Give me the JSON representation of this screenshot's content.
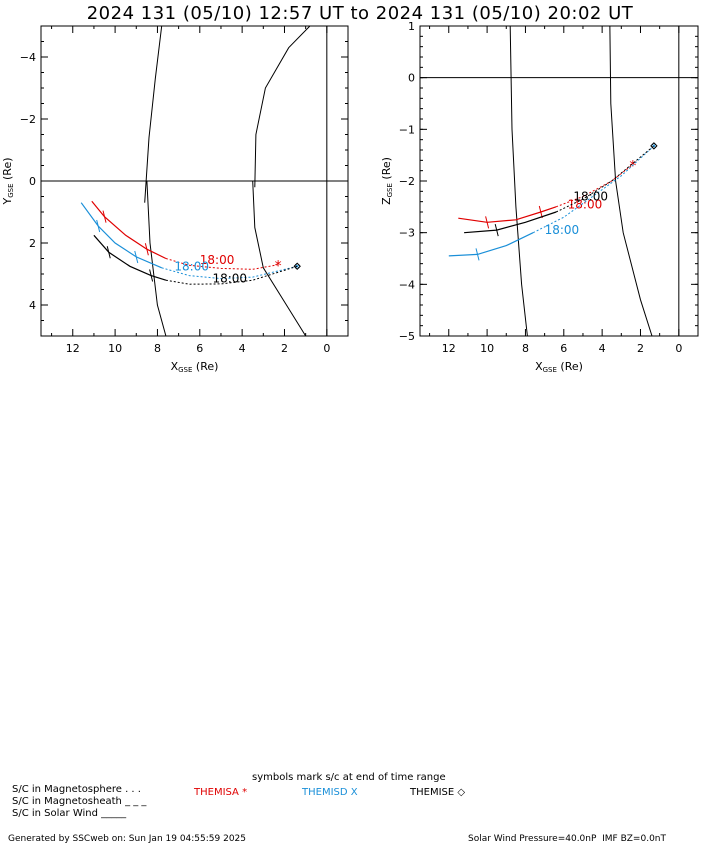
{
  "title": "2024 131 (05/10) 12:57 UT to 2024 131 (05/10) 20:02 UT",
  "colors": {
    "themisa": "#e00000",
    "themisd": "#1a8fd8",
    "themise": "#000000",
    "axes": "#000000"
  },
  "chart_data": [
    {
      "type": "line",
      "panel": "XY",
      "xlabel": "X",
      "xlabel_sub": "GSE",
      "xlabel_unit": " (Re)",
      "ylabel": "Y",
      "ylabel_sub": "GSE",
      "ylabel_unit": " (Re)",
      "xlim": [
        13.5,
        -1
      ],
      "ylim": [
        -5,
        5
      ],
      "y_inverted": true,
      "x_ticks": [
        12,
        10,
        8,
        6,
        4,
        2,
        0
      ],
      "y_ticks": [
        -4,
        -2,
        0,
        2,
        4
      ],
      "boundaries": [
        {
          "name": "",
          "points": [
            [
              8.6,
              0.7
            ],
            [
              8.4,
              -1.4
            ],
            [
              8.1,
              -3.3
            ],
            [
              7.8,
              -5.0
            ]
          ]
        },
        {
          "name": "",
          "points": [
            [
              8.5,
              0.0
            ],
            [
              8.35,
              2.0
            ],
            [
              8.0,
              4.0
            ],
            [
              7.6,
              5.0
            ]
          ]
        },
        {
          "name": "",
          "points": [
            [
              3.4,
              0.2
            ],
            [
              3.35,
              -1.5
            ],
            [
              2.9,
              -3.0
            ],
            [
              1.8,
              -4.3
            ],
            [
              0.8,
              -5.0
            ]
          ]
        },
        {
          "name": "",
          "points": [
            [
              3.5,
              0.0
            ],
            [
              3.4,
              1.5
            ],
            [
              3.0,
              2.8
            ],
            [
              2.0,
              3.9
            ],
            [
              1.0,
              5.0
            ]
          ]
        }
      ],
      "series": [
        {
          "name": "THEMISA",
          "color": "#e00000",
          "solid": [
            [
              11.1,
              0.65
            ],
            [
              10.5,
              1.15
            ],
            [
              9.5,
              1.75
            ],
            [
              8.5,
              2.2
            ],
            [
              7.6,
              2.5
            ]
          ],
          "dashed": [
            [
              7.6,
              2.5
            ],
            [
              6.5,
              2.72
            ],
            [
              5.0,
              2.82
            ],
            [
              3.5,
              2.85
            ],
            [
              2.3,
              2.7
            ]
          ],
          "end_symbol": "asterisk",
          "end": [
            2.3,
            2.7
          ],
          "tick_label": "18:00",
          "tick_label_at": [
            6.0,
            2.55
          ]
        },
        {
          "name": "THEMISD",
          "color": "#1a8fd8",
          "solid": [
            [
              11.6,
              0.7
            ],
            [
              10.8,
              1.45
            ],
            [
              10.0,
              2.0
            ],
            [
              9.0,
              2.45
            ],
            [
              7.8,
              2.8
            ]
          ],
          "dashed": [
            [
              7.8,
              2.8
            ],
            [
              6.5,
              3.05
            ],
            [
              5.0,
              3.15
            ],
            [
              3.5,
              3.1
            ],
            [
              1.4,
              2.75
            ]
          ],
          "end_symbol": "x",
          "end": [
            1.4,
            2.75
          ],
          "tick_label": "18:00",
          "tick_label_at": [
            7.2,
            2.75
          ]
        },
        {
          "name": "THEMISE",
          "color": "#000000",
          "solid": [
            [
              11.0,
              1.75
            ],
            [
              10.3,
              2.3
            ],
            [
              9.3,
              2.75
            ],
            [
              8.3,
              3.05
            ],
            [
              7.6,
              3.2
            ]
          ],
          "dashed": [
            [
              7.6,
              3.2
            ],
            [
              6.5,
              3.33
            ],
            [
              5.0,
              3.32
            ],
            [
              3.5,
              3.2
            ],
            [
              1.4,
              2.75
            ]
          ],
          "end_symbol": "diamond",
          "end": [
            1.4,
            2.75
          ],
          "tick_label": "18:00",
          "tick_label_at": [
            5.4,
            3.15
          ]
        }
      ]
    },
    {
      "type": "line",
      "panel": "XZ",
      "xlabel": "X",
      "xlabel_sub": "GSE",
      "xlabel_unit": " (Re)",
      "ylabel": "Z",
      "ylabel_sub": "GSE",
      "ylabel_unit": " (Re)",
      "xlim": [
        13.5,
        -1
      ],
      "ylim": [
        -5,
        1
      ],
      "x_ticks": [
        12,
        10,
        8,
        6,
        4,
        2,
        0
      ],
      "y_ticks": [
        -5,
        -4,
        -3,
        -2,
        -1,
        0,
        1
      ],
      "boundaries": [
        {
          "name": "",
          "points": [
            [
              8.8,
              1.1
            ],
            [
              8.7,
              -1.0
            ],
            [
              8.5,
              -2.5
            ],
            [
              8.2,
              -4.0
            ],
            [
              7.9,
              -5.0
            ]
          ]
        },
        {
          "name": "",
          "points": [
            [
              3.6,
              1.1
            ],
            [
              3.55,
              -0.5
            ],
            [
              3.3,
              -2.0
            ],
            [
              2.9,
              -3.0
            ],
            [
              2.0,
              -4.3
            ],
            [
              1.4,
              -5.0
            ]
          ]
        }
      ],
      "series": [
        {
          "name": "THEMISA",
          "color": "#e00000",
          "solid": [
            [
              11.5,
              -2.72
            ],
            [
              10.0,
              -2.8
            ],
            [
              8.5,
              -2.75
            ],
            [
              7.2,
              -2.6
            ],
            [
              6.4,
              -2.5
            ]
          ],
          "dashed": [
            [
              6.4,
              -2.5
            ],
            [
              5.0,
              -2.3
            ],
            [
              3.5,
              -2.0
            ],
            [
              2.4,
              -1.68
            ]
          ],
          "end_symbol": "asterisk",
          "end": [
            2.4,
            -1.68
          ],
          "tick_label": "18:00",
          "tick_label_at": [
            5.8,
            -2.45
          ]
        },
        {
          "name": "THEMISD",
          "color": "#1a8fd8",
          "solid": [
            [
              12.0,
              -3.45
            ],
            [
              10.5,
              -3.42
            ],
            [
              9.0,
              -3.25
            ],
            [
              7.6,
              -3.0
            ]
          ],
          "dashed": [
            [
              7.6,
              -3.0
            ],
            [
              6.0,
              -2.7
            ],
            [
              4.5,
              -2.3
            ],
            [
              3.0,
              -1.9
            ],
            [
              1.3,
              -1.32
            ]
          ],
          "end_symbol": "x",
          "end": [
            1.3,
            -1.32
          ],
          "tick_label": "18:00",
          "tick_label_at": [
            7.0,
            -2.95
          ]
        },
        {
          "name": "THEMISE",
          "color": "#000000",
          "solid": [
            [
              11.2,
              -3.0
            ],
            [
              9.5,
              -2.95
            ],
            [
              8.0,
              -2.8
            ],
            [
              6.4,
              -2.6
            ]
          ],
          "dashed": [
            [
              6.4,
              -2.6
            ],
            [
              5.0,
              -2.35
            ],
            [
              3.5,
              -2.0
            ],
            [
              1.3,
              -1.32
            ]
          ],
          "end_symbol": "diamond",
          "end": [
            1.3,
            -1.32
          ],
          "tick_label": "18:00",
          "tick_label_at": [
            5.5,
            -2.3
          ]
        }
      ]
    }
  ],
  "legend": {
    "symbols_note": "symbols mark s/c at end of time range",
    "magnetosphere": "S/C in Magnetosphere . . .",
    "magnetosheath": "S/C in Magnetosheath _ _ _",
    "solar_wind": "S/C in Solar Wind _____",
    "themisa": "THEMISA *",
    "themisd": "THEMISD X",
    "themise": "THEMISE ◇"
  },
  "footer": {
    "generated": "Generated by SSCweb on: Sun Jan 19 04:55:59 2025",
    "solar_wind": "Solar Wind Pressure=40.0nP  IMF BZ=0.0nT"
  }
}
